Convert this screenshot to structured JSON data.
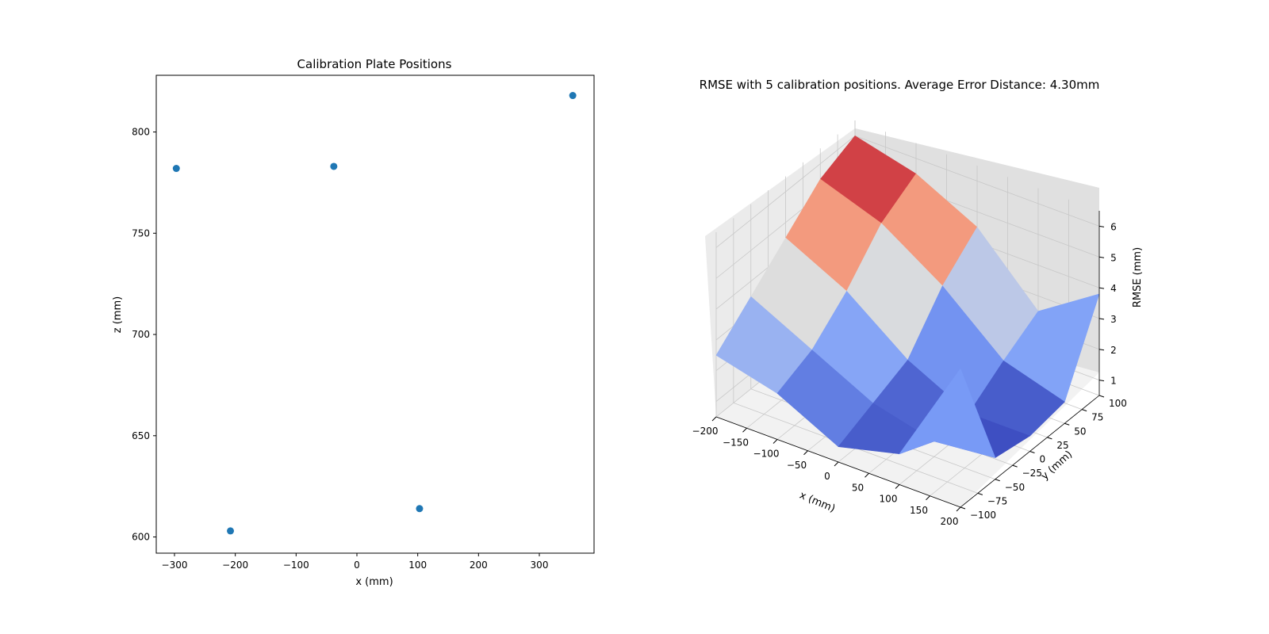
{
  "chart_data": [
    {
      "type": "scatter",
      "title": "Calibration Plate Positions",
      "xlabel": "x (mm)",
      "ylabel": "z (mm)",
      "xlim": [
        -330,
        390
      ],
      "ylim": [
        592,
        828
      ],
      "xticks": [
        -300,
        -200,
        -100,
        0,
        100,
        200,
        300
      ],
      "yticks": [
        600,
        650,
        700,
        750,
        800
      ],
      "grid": false,
      "marker_color": "#1f77b4",
      "points": [
        {
          "x": -297,
          "z": 782
        },
        {
          "x": -38,
          "z": 783
        },
        {
          "x": 355,
          "z": 818
        },
        {
          "x": -208,
          "z": 603
        },
        {
          "x": 103,
          "z": 614
        }
      ]
    },
    {
      "type": "surface3d",
      "title": "RMSE with 5 calibration positions. Average Error Distance: 4.30mm",
      "xlabel": "x (mm)",
      "ylabel": "y (mm)",
      "zlabel": "RMSE (mm)",
      "xlim": [
        -200,
        200
      ],
      "ylim": [
        -100,
        100
      ],
      "zlim": [
        0.5,
        6.5
      ],
      "xticks": [
        -200,
        -150,
        -100,
        -50,
        0,
        50,
        100,
        150,
        200
      ],
      "yticks": [
        -100,
        -75,
        -50,
        -25,
        0,
        25,
        50,
        75,
        100
      ],
      "zticks": [
        1,
        2,
        3,
        4,
        5,
        6
      ],
      "colormap": "coolwarm",
      "x": [
        -200,
        -100,
        0,
        100,
        200
      ],
      "y": [
        100,
        50,
        0,
        -50,
        -100
      ],
      "z": [
        [
          6.0,
          5.5,
          4.5,
          2.5,
          3.8
        ],
        [
          5.5,
          4.8,
          3.5,
          1.8,
          1.2
        ],
        [
          4.5,
          3.5,
          2.0,
          1.0,
          1.0
        ],
        [
          3.5,
          2.5,
          1.5,
          1.0,
          1.2
        ],
        [
          2.5,
          2.0,
          1.0,
          1.5,
          5.0
        ]
      ]
    }
  ]
}
